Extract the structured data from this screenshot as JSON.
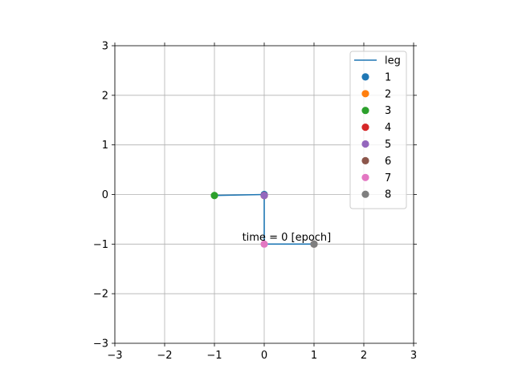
{
  "chart_data": {
    "type": "scatter",
    "title": "",
    "xlabel": "",
    "ylabel": "",
    "xlim": [
      -3,
      3
    ],
    "ylim": [
      -3,
      3
    ],
    "xticks": [
      -3,
      -2,
      -1,
      0,
      1,
      2,
      3
    ],
    "yticks": [
      -3,
      -2,
      -1,
      0,
      1,
      2,
      3
    ],
    "x_tick_labels": [
      "−3",
      "−2",
      "−1",
      "0",
      "1",
      "2",
      "3"
    ],
    "y_tick_labels": [
      "−3",
      "−2",
      "−1",
      "0",
      "1",
      "2",
      "3"
    ],
    "grid": true,
    "legend_position": "top-right",
    "line": {
      "name": "leg",
      "color": "#1f77b4",
      "x": [
        -1,
        0,
        0,
        1
      ],
      "y": [
        -0.02,
        0,
        -1,
        -1
      ]
    },
    "points": [
      {
        "name": "1",
        "x": 0,
        "y": 0,
        "color": "#1f77b4"
      },
      {
        "name": "2",
        "x": 0,
        "y": -0.02,
        "color": "#ff7f0e"
      },
      {
        "name": "3",
        "x": -1,
        "y": -0.02,
        "color": "#2ca02c"
      },
      {
        "name": "4",
        "x": 0,
        "y": -0.02,
        "color": "#d62728"
      },
      {
        "name": "5",
        "x": 0,
        "y": -0.02,
        "color": "#9467bd"
      },
      {
        "name": "6",
        "x": 1,
        "y": -1,
        "color": "#8c564b"
      },
      {
        "name": "7",
        "x": 0,
        "y": -1,
        "color": "#e377c2"
      },
      {
        "name": "8",
        "x": 1,
        "y": -1,
        "color": "#7f7f7f"
      }
    ],
    "annotation": {
      "text": "time = 0 [epoch]",
      "x": 0.45,
      "y": -0.93
    }
  }
}
